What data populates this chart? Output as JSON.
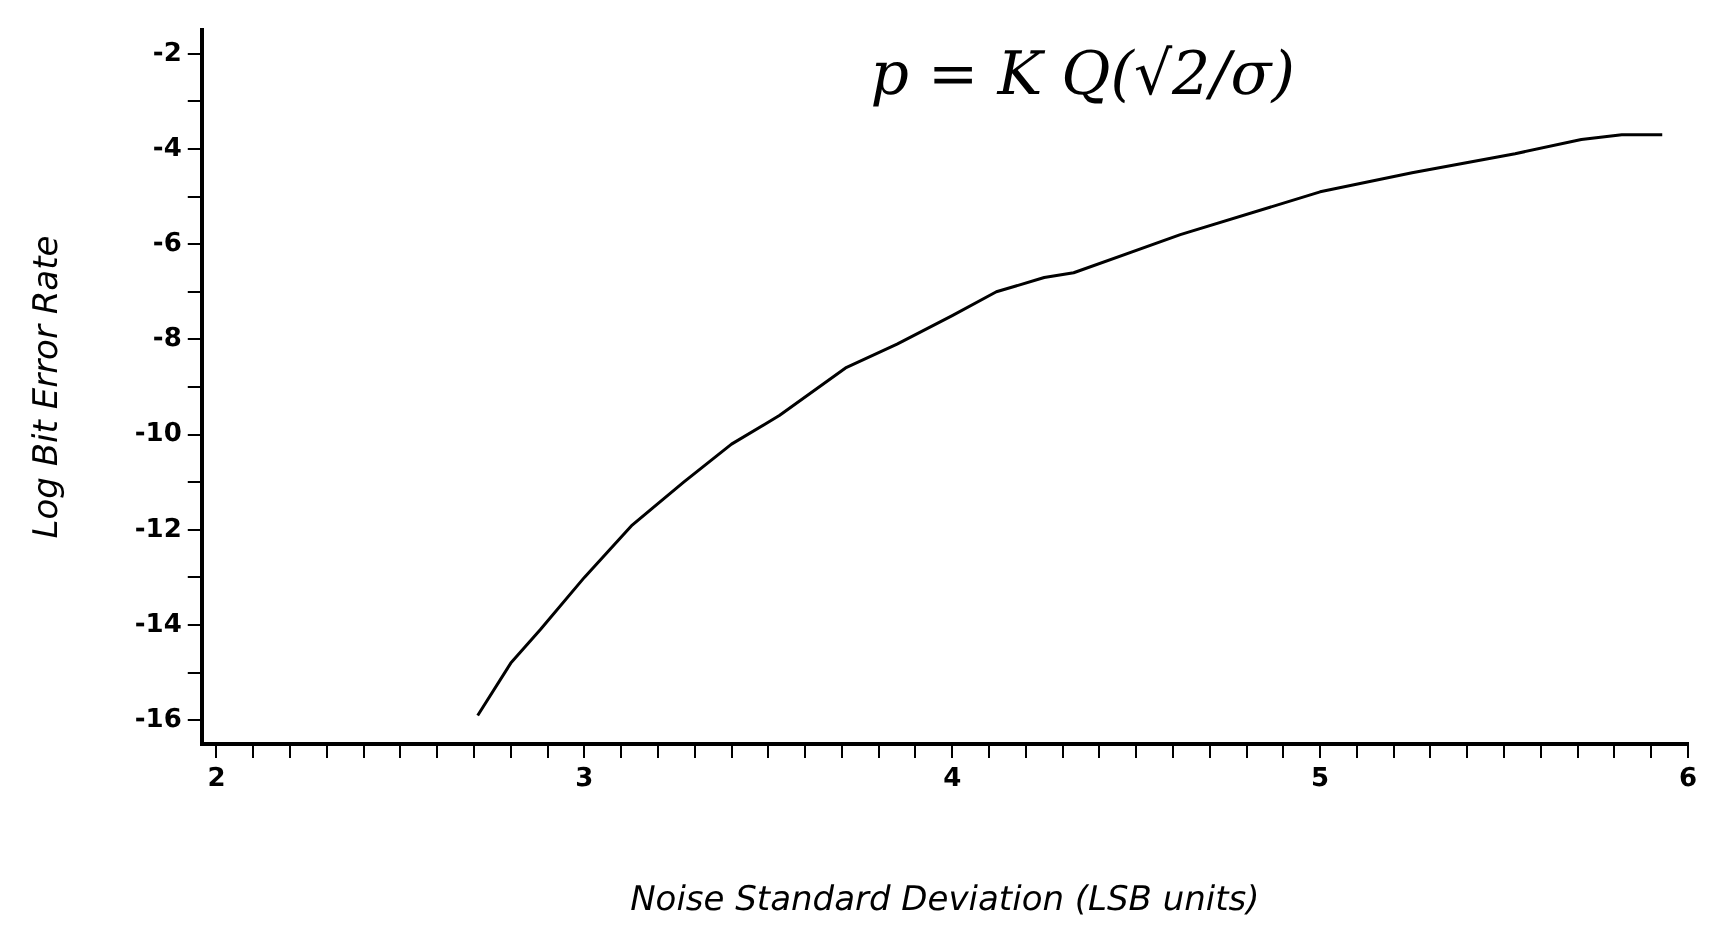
{
  "chart_data": {
    "type": "line",
    "xlabel": "Noise Standard Deviation (LSB units)",
    "ylabel": "Log Bit Error Rate",
    "annotations": [
      "p = K Q(√2/σ)"
    ],
    "x": [
      2.71,
      2.8,
      2.88,
      3.0,
      3.13,
      3.27,
      3.4,
      3.53,
      3.71,
      3.85,
      4.0,
      4.12,
      4.25,
      4.33,
      4.62,
      5.0,
      5.25,
      5.53,
      5.71,
      5.82,
      5.93
    ],
    "series": [
      {
        "color": "#000000",
        "values": [
          -15.9,
          -14.8,
          -14.1,
          -13.0,
          -11.9,
          -11.0,
          -10.2,
          -9.6,
          -8.6,
          -8.1,
          -7.5,
          -7.0,
          -6.7,
          -6.6,
          -5.8,
          -4.9,
          -4.5,
          -4.1,
          -3.8,
          -3.7,
          -3.7
        ]
      }
    ],
    "xlim": [
      1.96,
      6.0
    ],
    "ylim": [
      -16.5,
      -1.5
    ],
    "xticks": [
      2,
      {
        "value": 2.1,
        "label": null
      },
      {
        "value": 2.2,
        "label": null
      },
      {
        "value": 2.3,
        "label": null
      },
      {
        "value": 2.4,
        "label": null
      },
      {
        "value": 2.5,
        "label": null
      },
      {
        "value": 2.6,
        "label": null
      },
      {
        "value": 2.7,
        "label": null
      },
      {
        "value": 2.8,
        "label": null
      },
      {
        "value": 2.9,
        "label": null
      },
      3,
      {
        "value": 3.1,
        "label": null
      },
      {
        "value": 3.2,
        "label": null
      },
      {
        "value": 3.3,
        "label": null
      },
      {
        "value": 3.4,
        "label": null
      },
      {
        "value": 3.5,
        "label": null
      },
      {
        "value": 3.6,
        "label": null
      },
      {
        "value": 3.7,
        "label": null
      },
      {
        "value": 3.8,
        "label": null
      },
      {
        "value": 3.9,
        "label": null
      },
      4,
      {
        "value": 4.1,
        "label": null
      },
      {
        "value": 4.2,
        "label": null
      },
      {
        "value": 4.3,
        "label": null
      },
      {
        "value": 4.4,
        "label": null
      },
      {
        "value": 4.5,
        "label": null
      },
      {
        "value": 4.6,
        "label": null
      },
      {
        "value": 4.7,
        "label": null
      },
      {
        "value": 4.8,
        "label": null
      },
      {
        "value": 4.9,
        "label": null
      },
      5,
      {
        "value": 5.1,
        "label": null
      },
      {
        "value": 5.2,
        "label": null
      },
      {
        "value": 5.3,
        "label": null
      },
      {
        "value": 5.4,
        "label": null
      },
      {
        "value": 5.5,
        "label": null
      },
      {
        "value": 5.6,
        "label": null
      },
      {
        "value": 5.7,
        "label": null
      },
      {
        "value": 5.8,
        "label": null
      },
      {
        "value": 5.9,
        "label": null
      },
      6
    ],
    "yticks": [
      -2,
      {
        "value": -3,
        "label": null
      },
      -4,
      {
        "value": -5,
        "label": null
      },
      -6,
      {
        "value": -7,
        "label": null
      },
      -8,
      {
        "value": -9,
        "label": null
      },
      -10,
      {
        "value": -11,
        "label": null
      },
      -12,
      {
        "value": -13,
        "label": null
      },
      -14,
      {
        "value": -15,
        "label": null
      },
      -16
    ],
    "grid": false,
    "legend": false,
    "marker": "none",
    "line_style": "solid"
  }
}
